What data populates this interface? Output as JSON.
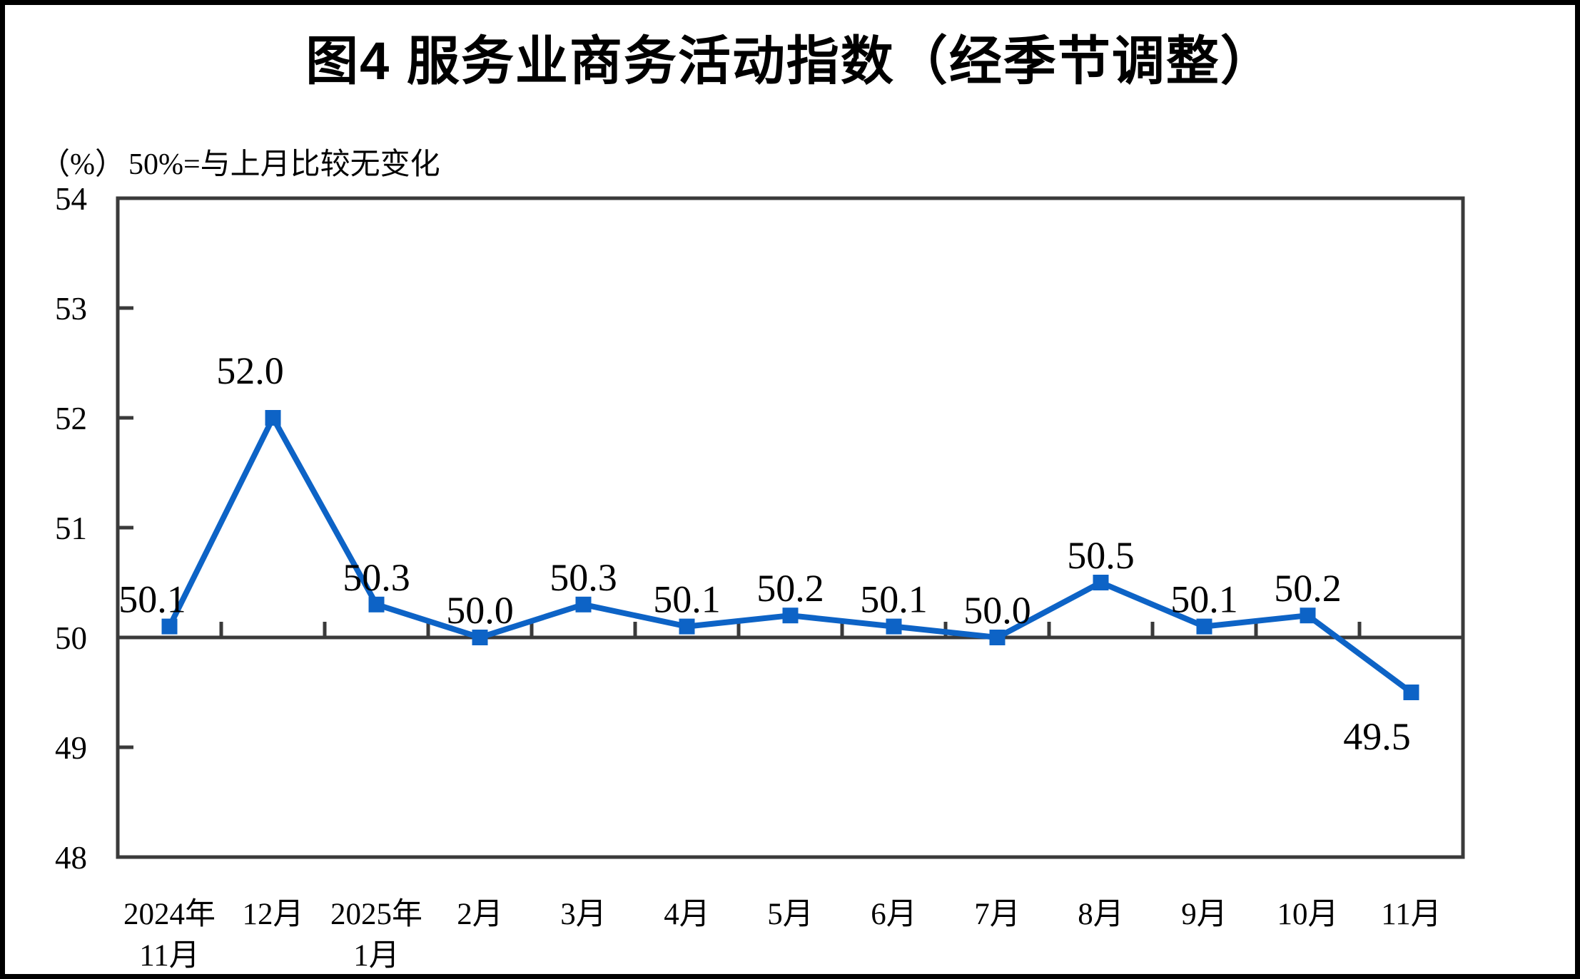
{
  "title": "图4  服务业商务活动指数（经季节调整）",
  "unit_label": "（%）",
  "subtitle": "50%=与上月比较无变化",
  "chart_data": {
    "type": "line",
    "title": "图4  服务业商务活动指数（经季节调整）",
    "subtitle": "50%=与上月比较无变化",
    "unit": "%",
    "categories": [
      [
        "2024年",
        "11月"
      ],
      [
        "12月"
      ],
      [
        "2025年",
        "1月"
      ],
      [
        "2月"
      ],
      [
        "3月"
      ],
      [
        "4月"
      ],
      [
        "5月"
      ],
      [
        "6月"
      ],
      [
        "7月"
      ],
      [
        "8月"
      ],
      [
        "9月"
      ],
      [
        "10月"
      ],
      [
        "11月"
      ]
    ],
    "values": [
      50.1,
      52.0,
      50.3,
      50.0,
      50.3,
      50.1,
      50.2,
      50.1,
      50.0,
      50.5,
      50.1,
      50.2,
      49.5
    ],
    "data_labels": [
      "50.1",
      "52.0",
      "50.3",
      "50.0",
      "50.3",
      "50.1",
      "50.2",
      "50.1",
      "50.0",
      "50.5",
      "50.1",
      "50.2",
      "49.5"
    ],
    "ylim": [
      48,
      54
    ],
    "yticks": [
      48,
      49,
      50,
      51,
      52,
      53,
      54
    ],
    "baseline_value": 50,
    "grid": false,
    "legend": "none",
    "line_color": "#0d63c6",
    "marker": "square",
    "axis_color": "#3a3a3a",
    "text_color": "#000000"
  }
}
